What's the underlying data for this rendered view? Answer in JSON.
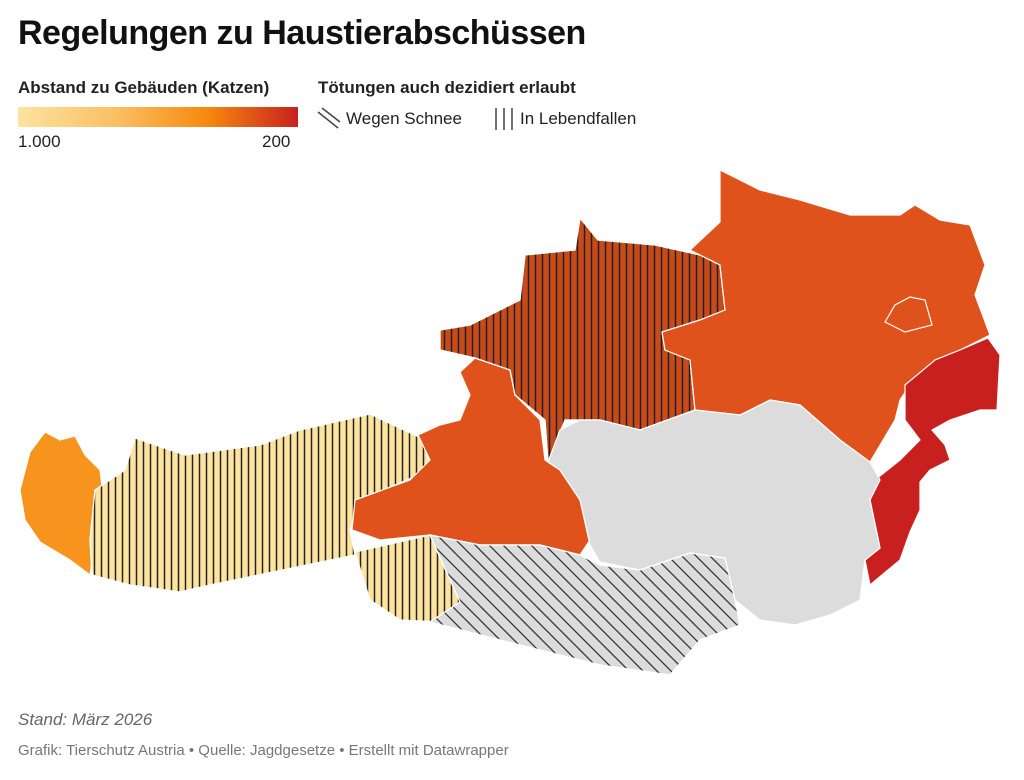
{
  "header": {
    "title": "Regelungen zu Haustierabschüssen"
  },
  "color_legend": {
    "title": "Abstand zu Gebäuden (Katzen)",
    "min_label": "1.000",
    "max_label": "200"
  },
  "pattern_legend": {
    "title": "Tötungen auch dezidiert erlaubt",
    "items": [
      "Wegen Schnee",
      "In Lebendfallen"
    ]
  },
  "footer": {
    "note": "Stand: März 2026",
    "credits": "Grafik: Tierschutz Austria • Quelle: Jagdgesetze • Erstellt mit Datawrapper"
  }
}
